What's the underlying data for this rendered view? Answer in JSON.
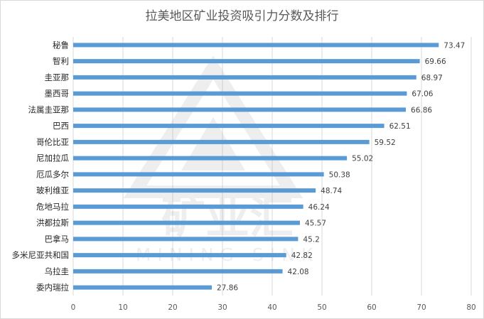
{
  "chart_data": {
    "type": "bar",
    "orientation": "horizontal",
    "title": "拉美地区矿业投资吸引力分数及排行",
    "categories": [
      "秘鲁",
      "智利",
      "圭亚那",
      "墨西哥",
      "法属圭亚那",
      "巴西",
      "哥伦比亚",
      "尼加拉瓜",
      "厄瓜多尔",
      "玻利维亚",
      "危地马拉",
      "洪都拉斯",
      "巴拿马",
      "多米尼亚共和国",
      "乌拉圭",
      "委内瑞拉"
    ],
    "values": [
      73.47,
      69.66,
      68.97,
      67.06,
      66.86,
      62.51,
      59.52,
      55.02,
      50.38,
      48.74,
      46.24,
      45.57,
      45.2,
      42.82,
      42.08,
      27.86
    ],
    "value_labels": [
      "73.47",
      "69.66",
      "68.97",
      "67.06",
      "66.86",
      "62.51",
      "59.52",
      "55.02",
      "50.38",
      "48.74",
      "46.24",
      "45.57",
      "45.2",
      "42.82",
      "42.08",
      "27.86"
    ],
    "xlim": [
      0,
      80
    ],
    "xticks": [
      "0",
      "10",
      "20",
      "30",
      "40",
      "50",
      "60",
      "70",
      "80"
    ],
    "grid": true,
    "legend": "none",
    "bar_color": "#5b9bd5",
    "grid_color": "#d9d9d9"
  },
  "watermark": {
    "brand": "矿业汇",
    "subtitle": "MINING SINK"
  }
}
